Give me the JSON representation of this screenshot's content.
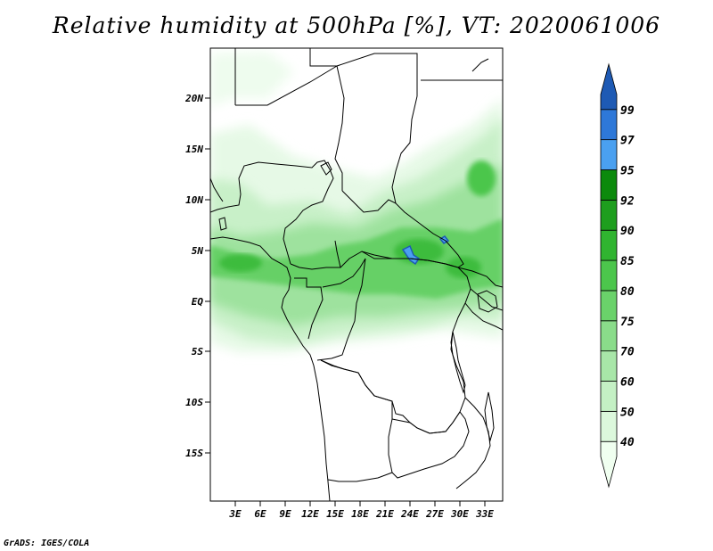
{
  "title": "Relative humidity at 500hPa [%], VT: 2020061006",
  "credit": "GrADS: IGES/COLA",
  "map": {
    "lon_range": [
      0,
      36
    ],
    "lat_range": [
      -20,
      25
    ],
    "lon_ticks": [
      "3E",
      "6E",
      "9E",
      "12E",
      "15E",
      "18E",
      "21E",
      "24E",
      "27E",
      "30E",
      "33E"
    ],
    "lat_ticks": [
      "20N",
      "15N",
      "10N",
      "5N",
      "EQ",
      "5S",
      "10S",
      "15S"
    ]
  },
  "colorbar": {
    "levels": [
      "40",
      "50",
      "60",
      "70",
      "75",
      "80",
      "85",
      "90",
      "92",
      "95",
      "97",
      "99"
    ],
    "colors": [
      "#f0fff0",
      "#dcf8dc",
      "#c4f0c4",
      "#a8e6a8",
      "#8adc8a",
      "#6ad26a",
      "#4cc64c",
      "#30b430",
      "#1e9e1e",
      "#0c8a0c",
      "#4aa0f0",
      "#2e78d8",
      "#1e5ab4"
    ]
  }
}
